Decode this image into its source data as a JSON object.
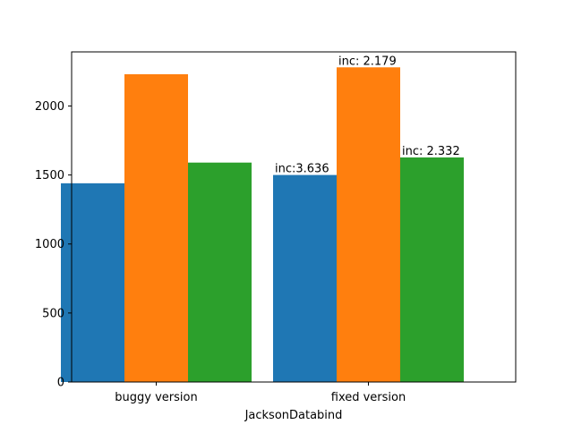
{
  "chart_data": {
    "type": "bar",
    "title": "",
    "xlabel": "JacksonDatabind",
    "ylabel": "",
    "categories": [
      "buggy version",
      "fixed version"
    ],
    "series": [
      {
        "values": [
          1440,
          1500
        ],
        "color": "#1f77b4",
        "labels": [
          "",
          "inc:3.636"
        ]
      },
      {
        "values": [
          2230,
          2280
        ],
        "color": "#ff7f0e",
        "labels": [
          "",
          "inc: 2.179"
        ]
      },
      {
        "values": [
          1590,
          1627
        ],
        "color": "#2ca02c",
        "labels": [
          "",
          "inc: 2.332"
        ]
      }
    ],
    "ylim": [
      0,
      2392
    ],
    "yticks": [
      0,
      500,
      1000,
      1500,
      2000
    ],
    "grid": false,
    "legend": "none"
  }
}
